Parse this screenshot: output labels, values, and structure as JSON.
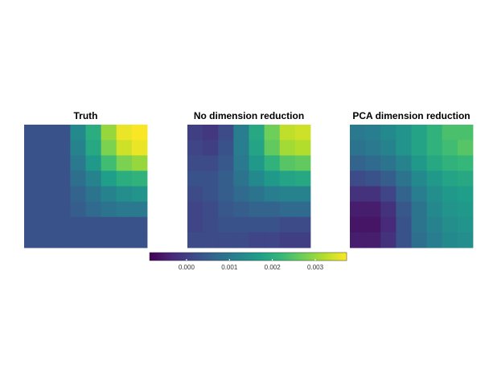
{
  "chart_data": {
    "type": "heatmap",
    "panels": [
      {
        "title": "Truth",
        "values": [
          [
            0.0003,
            0.0003,
            0.0003,
            0.0013,
            0.002,
            0.003,
            0.0036,
            0.0037
          ],
          [
            0.0003,
            0.0003,
            0.0003,
            0.0012,
            0.0019,
            0.0028,
            0.0034,
            0.0036
          ],
          [
            0.0003,
            0.0003,
            0.0003,
            0.001,
            0.0016,
            0.0023,
            0.0028,
            0.003
          ],
          [
            0.0003,
            0.0003,
            0.0003,
            0.0008,
            0.0012,
            0.0017,
            0.002,
            0.0021
          ],
          [
            0.0003,
            0.0003,
            0.0003,
            0.0006,
            0.0009,
            0.0012,
            0.0014,
            0.0015
          ],
          [
            0.0003,
            0.0003,
            0.0003,
            0.0005,
            0.0007,
            0.0009,
            0.001,
            0.001
          ],
          [
            0.0003,
            0.0003,
            0.0003,
            0.0003,
            0.0003,
            0.0003,
            0.0003,
            0.0003
          ],
          [
            0.0003,
            0.0003,
            0.0003,
            0.0003,
            0.0003,
            0.0003,
            0.0003,
            0.0003
          ]
        ]
      },
      {
        "title": "No dimension reduction",
        "values": [
          [
            0.0,
            -0.0001,
            0.0002,
            0.0011,
            0.0019,
            0.0027,
            0.0033,
            0.0034
          ],
          [
            0.0001,
            0.0,
            0.0003,
            0.0011,
            0.0018,
            0.0026,
            0.0031,
            0.0032
          ],
          [
            0.0002,
            0.0002,
            0.0004,
            0.001,
            0.0016,
            0.0021,
            0.0025,
            0.0026
          ],
          [
            0.0003,
            0.0003,
            0.0005,
            0.0009,
            0.0013,
            0.0016,
            0.0018,
            0.0019
          ],
          [
            0.0002,
            0.0003,
            0.0005,
            0.0007,
            0.0009,
            0.0011,
            0.0012,
            0.0012
          ],
          [
            0.0001,
            0.0002,
            0.0004,
            0.0005,
            0.0006,
            0.0006,
            0.0007,
            0.0007
          ],
          [
            0.0001,
            0.0002,
            0.0003,
            0.0003,
            0.0003,
            0.0003,
            0.0002,
            0.0002
          ],
          [
            0.0002,
            0.0002,
            0.0002,
            0.0002,
            0.0001,
            0.0001,
            0.0,
            0.0
          ]
        ]
      },
      {
        "title": "PCA dimension reduction",
        "values": [
          [
            0.001,
            0.0011,
            0.0013,
            0.0015,
            0.0018,
            0.0021,
            0.0024,
            0.0024
          ],
          [
            0.0009,
            0.001,
            0.0012,
            0.0015,
            0.0018,
            0.0021,
            0.0023,
            0.0025
          ],
          [
            0.0006,
            0.0007,
            0.0009,
            0.0012,
            0.0016,
            0.0019,
            0.0021,
            0.0022
          ],
          [
            0.0002,
            0.0003,
            0.0005,
            0.0009,
            0.0013,
            0.0016,
            0.0018,
            0.0019
          ],
          [
            -0.0002,
            -0.0002,
            0.0001,
            0.0006,
            0.0011,
            0.0014,
            0.0016,
            0.0017
          ],
          [
            -0.0005,
            -0.0005,
            -0.0002,
            0.0004,
            0.0009,
            0.0013,
            0.0015,
            0.0016
          ],
          [
            -0.0006,
            -0.0006,
            -0.0003,
            0.0003,
            0.0009,
            0.0012,
            0.0014,
            0.0015
          ],
          [
            -0.0005,
            -0.0005,
            -0.0002,
            0.0003,
            0.0008,
            0.0011,
            0.0013,
            0.0014
          ]
        ]
      }
    ],
    "colorbar": {
      "lim": [
        -0.00086,
        0.00373
      ],
      "ticks": [
        {
          "value": 0,
          "label": "0.000"
        },
        {
          "value": 0.001,
          "label": "0.001"
        },
        {
          "value": 0.002,
          "label": "0.002"
        },
        {
          "value": 0.003,
          "label": "0.003"
        }
      ]
    }
  }
}
